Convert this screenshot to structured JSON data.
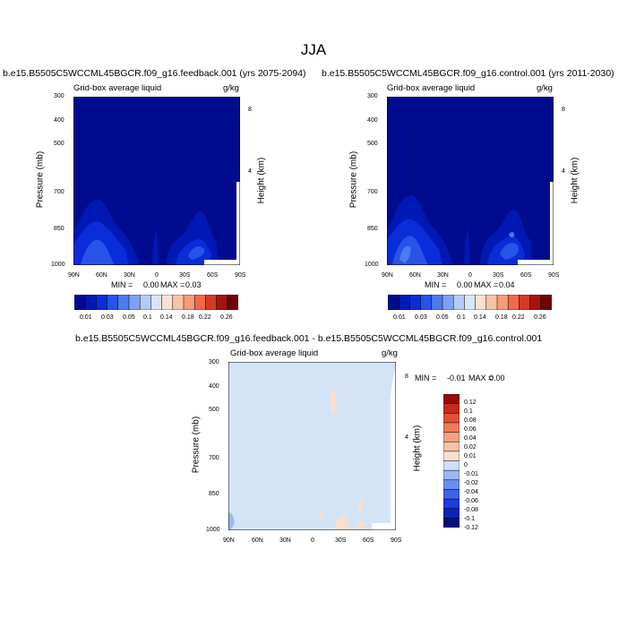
{
  "figure": {
    "title": "JJA",
    "season": "JJA"
  },
  "colors": {
    "abs_scale": [
      "#000b8f",
      "#0019b4",
      "#0a2cd9",
      "#2753e8",
      "#4f79ef",
      "#7ea1f4",
      "#b3ccf7",
      "#d9e6f8",
      "#f9e2d3",
      "#f8c3a6",
      "#f69a78",
      "#ef6a4b",
      "#d63a25",
      "#a6150d",
      "#6a0503"
    ],
    "diff_scale": [
      "#030f7e",
      "#0a23b8",
      "#1d3ce0",
      "#3d63ea",
      "#6b8df0",
      "#9bb7f6",
      "#cfe0fb",
      "#f8dfcf",
      "#f6c3a6",
      "#f3a180",
      "#ee7a58",
      "#e24f33",
      "#c62a18",
      "#950c06"
    ]
  },
  "chart_data": [
    {
      "type": "heatmap",
      "title": "b.e15.B5505C5WCCML45BGCR.f09_g16.feedback.001 (yrs 2075-2094)",
      "left_label": "Grid-box average liquid",
      "right_label": "g/kg",
      "xlabel": "",
      "ylabel": "Pressure (mb)",
      "ylabel_right": "Height (km)",
      "x_ticks": [
        "90N",
        "60N",
        "30N",
        "0",
        "30S",
        "60S",
        "90S"
      ],
      "y_ticks": [
        "300",
        "400",
        "500",
        "700",
        "850",
        "1000"
      ],
      "height_ticks": [
        "8",
        "4"
      ],
      "ylim": [
        1000,
        300
      ],
      "y_scale": "log",
      "min_label": "MIN =",
      "min": "0.00",
      "max_label": "MAX =",
      "max": "0.03",
      "colorbar_labels": [
        "0.01",
        "0.03",
        "0.05",
        "0.1",
        "0.14",
        "0.18",
        "0.22",
        "0.26"
      ],
      "colorbar_levels": [
        0.01,
        0.02,
        0.03,
        0.04,
        0.05,
        0.075,
        0.1,
        0.12,
        0.14,
        0.16,
        0.18,
        0.2,
        0.22,
        0.24,
        0.26
      ],
      "features": [
        {
          "lat": 60,
          "p": 860,
          "value": 0.015
        },
        {
          "lat": 25,
          "p": 880,
          "value": 0.012
        }
      ]
    },
    {
      "type": "heatmap",
      "title": "b.e15.B5505C5WCCML45BGCR.f09_g16.control.001 (yrs 2011-2030)",
      "left_label": "Grid-box average liquid",
      "right_label": "g/kg",
      "xlabel": "",
      "ylabel": "Pressure (mb)",
      "ylabel_right": "Height (km)",
      "x_ticks": [
        "90N",
        "60N",
        "30N",
        "0",
        "30S",
        "60S",
        "90S"
      ],
      "y_ticks": [
        "300",
        "400",
        "500",
        "700",
        "850",
        "1000"
      ],
      "height_ticks": [
        "8",
        "4"
      ],
      "ylim": [
        1000,
        300
      ],
      "y_scale": "log",
      "min_label": "MIN =",
      "min": "0.00",
      "max_label": "MAX =",
      "max": "0.04",
      "colorbar_labels": [
        "0.01",
        "0.03",
        "0.05",
        "0.1",
        "0.14",
        "0.18",
        "0.22",
        "0.26"
      ],
      "colorbar_levels": [
        0.01,
        0.02,
        0.03,
        0.04,
        0.05,
        0.075,
        0.1,
        0.12,
        0.14,
        0.16,
        0.18,
        0.2,
        0.22,
        0.24,
        0.26
      ],
      "features": [
        {
          "lat": 60,
          "p": 860,
          "value": 0.016
        },
        {
          "lat": 25,
          "p": 880,
          "value": 0.014
        }
      ]
    },
    {
      "type": "heatmap",
      "title": "b.e15.B5505C5WCCML45BGCR.f09_g16.feedback.001 - b.e15.B5505C5WCCML45BGCR.f09_g16.control.001",
      "left_label": "Grid-box average liquid",
      "right_label": "g/kg",
      "xlabel": "",
      "ylabel": "Pressure (mb)",
      "ylabel_right": "Height (km)",
      "x_ticks": [
        "90N",
        "60N",
        "30N",
        "0",
        "30S",
        "60S",
        "90S"
      ],
      "y_ticks": [
        "300",
        "400",
        "500",
        "700",
        "850",
        "1000"
      ],
      "height_ticks": [
        "8",
        "4"
      ],
      "ylim": [
        1000,
        300
      ],
      "y_scale": "log",
      "min_label": "MIN =",
      "min": "-0.01",
      "max_label": "MAX =",
      "max": "0.00",
      "colorbar_labels": [
        "0.12",
        "0.1",
        "0.08",
        "0.06",
        "0.04",
        "0.02",
        "0.01",
        "0",
        "-0.01",
        "-0.02",
        "-0.04",
        "-0.06",
        "-0.08",
        "-0.1",
        "-0.12"
      ]
    }
  ]
}
